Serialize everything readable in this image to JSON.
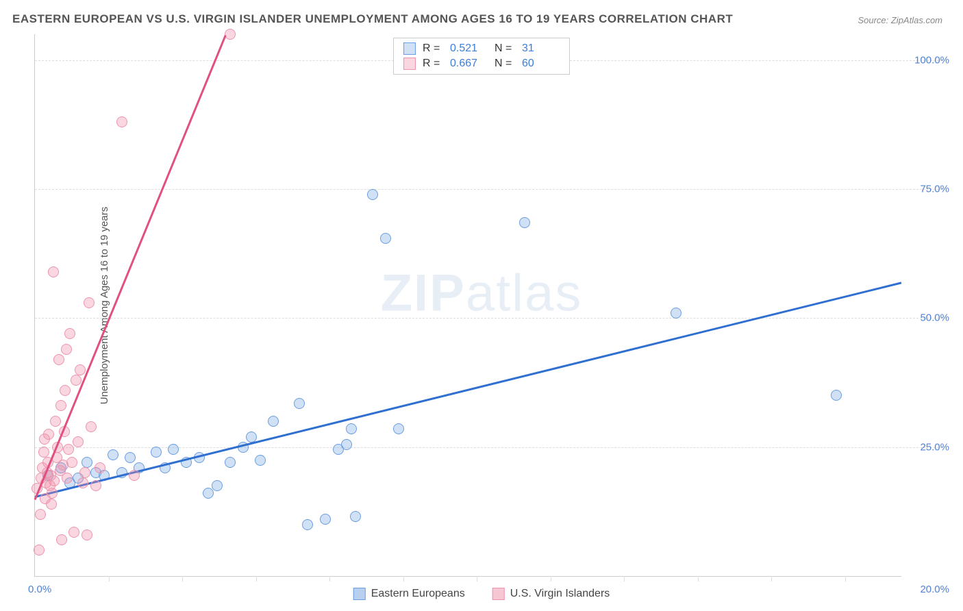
{
  "title": "EASTERN EUROPEAN VS U.S. VIRGIN ISLANDER UNEMPLOYMENT AMONG AGES 16 TO 19 YEARS CORRELATION CHART",
  "source": "Source: ZipAtlas.com",
  "ylabel": "Unemployment Among Ages 16 to 19 years",
  "watermark_a": "ZIP",
  "watermark_b": "atlas",
  "chart": {
    "type": "scatter",
    "xlim": [
      0,
      20
    ],
    "ylim": [
      0,
      105
    ],
    "x_origin_label": "0.0%",
    "x_end_label": "20.0%",
    "y_ticks": [
      25.0,
      50.0,
      75.0,
      100.0
    ],
    "y_tick_labels": [
      "25.0%",
      "50.0%",
      "75.0%",
      "100.0%"
    ],
    "x_minor_ticks": [
      1.7,
      3.4,
      5.1,
      6.8,
      8.5,
      10.2,
      11.9,
      13.6,
      15.3,
      17.0,
      18.7
    ],
    "grid_color": "#dddddd",
    "background_color": "#ffffff",
    "axis_color": "#cccccc",
    "tick_label_color": "#4f81d4",
    "series": [
      {
        "name": "Eastern Europeans",
        "marker_fill": "rgba(120,165,225,0.35)",
        "marker_stroke": "#6a9de0",
        "trend_color": "#2f6fd0",
        "r": "0.521",
        "n": "31",
        "trend": {
          "x1": 0.0,
          "y1": 15.5,
          "x2": 20.0,
          "y2": 57.0
        },
        "points": [
          [
            0.3,
            19.5
          ],
          [
            0.6,
            21.0
          ],
          [
            0.8,
            18.0
          ],
          [
            1.0,
            19.0
          ],
          [
            1.2,
            22.0
          ],
          [
            1.4,
            20.0
          ],
          [
            1.6,
            19.5
          ],
          [
            1.8,
            23.5
          ],
          [
            2.0,
            20.0
          ],
          [
            2.2,
            23.0
          ],
          [
            2.4,
            21.0
          ],
          [
            2.8,
            24.0
          ],
          [
            3.0,
            21.0
          ],
          [
            3.2,
            24.5
          ],
          [
            3.5,
            22.0
          ],
          [
            3.8,
            23.0
          ],
          [
            4.0,
            16.0
          ],
          [
            4.2,
            17.5
          ],
          [
            4.5,
            22.0
          ],
          [
            4.8,
            25.0
          ],
          [
            5.0,
            27.0
          ],
          [
            5.2,
            22.5
          ],
          [
            5.5,
            30.0
          ],
          [
            6.1,
            33.5
          ],
          [
            6.3,
            10.0
          ],
          [
            6.7,
            11.0
          ],
          [
            7.0,
            24.5
          ],
          [
            7.2,
            25.5
          ],
          [
            7.3,
            28.5
          ],
          [
            7.4,
            11.5
          ],
          [
            7.8,
            74.0
          ],
          [
            8.1,
            65.5
          ],
          [
            8.4,
            28.5
          ],
          [
            11.3,
            68.5
          ],
          [
            14.8,
            51.0
          ],
          [
            18.5,
            35.0
          ]
        ]
      },
      {
        "name": "U.S. Virgin Islanders",
        "marker_fill": "rgba(240,140,165,0.35)",
        "marker_stroke": "#ec94ac",
        "trend_color": "#e05080",
        "r": "0.667",
        "n": "60",
        "trend": {
          "x1": 0.0,
          "y1": 15.0,
          "x2": 4.4,
          "y2": 105.0
        },
        "points": [
          [
            0.05,
            17.0
          ],
          [
            0.1,
            5.0
          ],
          [
            0.12,
            12.0
          ],
          [
            0.15,
            19.0
          ],
          [
            0.18,
            21.0
          ],
          [
            0.2,
            24.0
          ],
          [
            0.22,
            26.5
          ],
          [
            0.24,
            15.0
          ],
          [
            0.26,
            18.0
          ],
          [
            0.28,
            20.0
          ],
          [
            0.3,
            22.0
          ],
          [
            0.32,
            27.5
          ],
          [
            0.34,
            17.5
          ],
          [
            0.36,
            19.5
          ],
          [
            0.38,
            14.0
          ],
          [
            0.4,
            16.0
          ],
          [
            0.42,
            59.0
          ],
          [
            0.45,
            18.5
          ],
          [
            0.48,
            30.0
          ],
          [
            0.5,
            23.0
          ],
          [
            0.52,
            25.0
          ],
          [
            0.55,
            42.0
          ],
          [
            0.58,
            20.5
          ],
          [
            0.6,
            33.0
          ],
          [
            0.62,
            7.0
          ],
          [
            0.65,
            21.5
          ],
          [
            0.68,
            28.0
          ],
          [
            0.7,
            36.0
          ],
          [
            0.72,
            44.0
          ],
          [
            0.75,
            19.0
          ],
          [
            0.78,
            24.5
          ],
          [
            0.8,
            47.0
          ],
          [
            0.85,
            22.0
          ],
          [
            0.9,
            8.5
          ],
          [
            0.95,
            38.0
          ],
          [
            1.0,
            26.0
          ],
          [
            1.05,
            40.0
          ],
          [
            1.1,
            18.0
          ],
          [
            1.15,
            20.0
          ],
          [
            1.2,
            8.0
          ],
          [
            1.25,
            53.0
          ],
          [
            1.3,
            29.0
          ],
          [
            1.4,
            17.5
          ],
          [
            1.5,
            21.0
          ],
          [
            2.0,
            88.0
          ],
          [
            2.3,
            19.5
          ],
          [
            4.5,
            105.0
          ]
        ]
      }
    ]
  },
  "legend_top": {
    "r_label": "R  =",
    "n_label": "N  =",
    "value_color": "#3b7dd8"
  },
  "legend_bottom": [
    {
      "label": "Eastern Europeans",
      "swatch_fill": "#b8d0f0",
      "swatch_stroke": "#6a9de0"
    },
    {
      "label": "U.S. Virgin Islanders",
      "swatch_fill": "#f6c6d3",
      "swatch_stroke": "#ec94ac"
    }
  ]
}
